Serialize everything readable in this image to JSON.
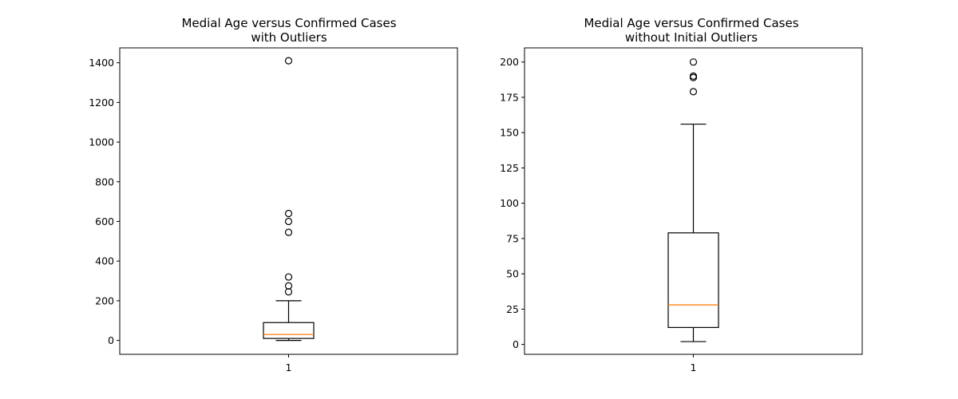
{
  "chart_data": [
    {
      "type": "box",
      "title_lines": [
        "Medial Age versus Confirmed Cases",
        "with Outliers"
      ],
      "xlabel": "",
      "ylabel": "",
      "categories": [
        "1"
      ],
      "ylim": [
        -70,
        1475
      ],
      "yticks": [
        0,
        200,
        400,
        600,
        800,
        1000,
        1200,
        1400
      ],
      "box": {
        "whisker_low": 0,
        "q1": 10,
        "median": 30,
        "q3": 90,
        "whisker_high": 200
      },
      "outliers": [
        245,
        275,
        320,
        545,
        600,
        640,
        1410
      ],
      "grid": false,
      "colors": {
        "median": "#ff7f0e",
        "box": "#000000"
      }
    },
    {
      "type": "box",
      "title_lines": [
        "Medial Age versus Confirmed Cases",
        "without Initial Outliers"
      ],
      "xlabel": "",
      "ylabel": "",
      "categories": [
        "1"
      ],
      "ylim": [
        -7,
        210
      ],
      "yticks": [
        0,
        25,
        50,
        75,
        100,
        125,
        150,
        175,
        200
      ],
      "box": {
        "whisker_low": 2,
        "q1": 12,
        "median": 28,
        "q3": 79,
        "whisker_high": 156
      },
      "outliers": [
        179,
        189,
        190,
        200
      ],
      "grid": false,
      "colors": {
        "median": "#ff7f0e",
        "box": "#000000"
      }
    }
  ]
}
